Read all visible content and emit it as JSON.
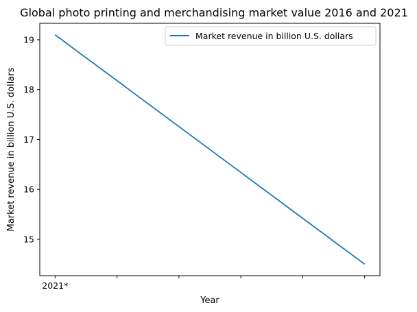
{
  "chart_data": {
    "type": "line",
    "title": "Global photo printing and merchandising market value 2016 and 2021",
    "xlabel": "Year",
    "ylabel": "Market revenue in billion U.S. dollars",
    "categories": [
      "2021*",
      "",
      "",
      "",
      "",
      ""
    ],
    "series": [
      {
        "name": "Market revenue in billion U.S. dollars",
        "values": [
          19.1,
          18.18,
          17.26,
          16.34,
          15.42,
          14.5
        ],
        "color": "#1f77b4"
      }
    ],
    "yticks": [
      15,
      16,
      17,
      18,
      19
    ],
    "ylim": [
      14.27,
      19.33
    ],
    "grid": false,
    "legend_position": "top-right"
  }
}
